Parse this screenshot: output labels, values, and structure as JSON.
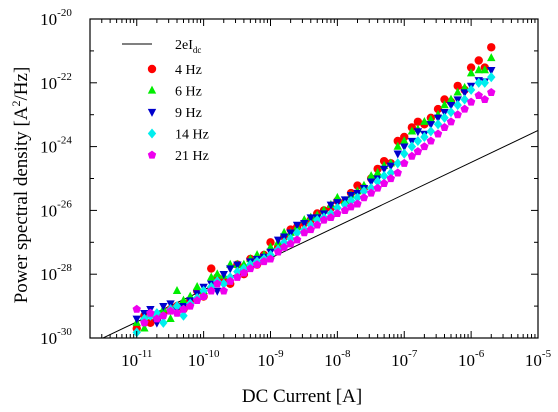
{
  "chart_data": {
    "type": "scatter",
    "title": "",
    "xlabel": "DC Current [A]",
    "ylabel_prefix": "Power spectral density [A",
    "ylabel_sup": "2",
    "ylabel_suffix": "/Hz]",
    "x_scale": "log",
    "y_scale": "log",
    "xlim": [
      2e-12,
      1e-05
    ],
    "ylim": [
      1e-30,
      1e-20
    ],
    "x_tick_exponents": [
      -11,
      -10,
      -9,
      -8,
      -7,
      -6,
      -5
    ],
    "y_tick_exponents": [
      -30,
      -28,
      -26,
      -24,
      -22,
      -20
    ],
    "grid": false,
    "legend_position": "top-left",
    "reference_line": {
      "label_main": "2eI",
      "label_sub": "dc",
      "color": "#000000",
      "points": [
        [
          2e-12,
          6.4e-31
        ],
        [
          1e-05,
          3.2e-24
        ]
      ]
    },
    "series": [
      {
        "name": "4 Hz",
        "color": "#ff0000",
        "marker": "circle",
        "x": [
          1e-11,
          1.3e-11,
          1.6e-11,
          2e-11,
          2.5e-11,
          3.2e-11,
          4e-11,
          5e-11,
          6.3e-11,
          8e-11,
          1e-10,
          1.3e-10,
          1.6e-10,
          2e-10,
          2.5e-10,
          3.2e-10,
          4e-10,
          5e-10,
          6.3e-10,
          8e-10,
          1e-09,
          1.3e-09,
          1.6e-09,
          2e-09,
          2.5e-09,
          3.2e-09,
          4e-09,
          5e-09,
          6.3e-09,
          8e-09,
          1e-08,
          1.3e-08,
          1.6e-08,
          2e-08,
          2.5e-08,
          3.2e-08,
          4e-08,
          5e-08,
          6.3e-08,
          8e-08,
          1e-07,
          1.3e-07,
          1.6e-07,
          2e-07,
          2.5e-07,
          3.2e-07,
          4e-07,
          5e-07,
          6.3e-07,
          8e-07,
          1e-06,
          1.3e-06,
          1.6e-06,
          2e-06
        ],
        "y": [
          2e-30,
          5e-30,
          3e-30,
          4e-30,
          6e-30,
          8e-30,
          1e-29,
          8e-30,
          1.5e-29,
          3e-29,
          2e-29,
          1.5e-28,
          8e-29,
          7e-29,
          5e-29,
          2e-28,
          1e-28,
          3e-28,
          2e-28,
          4e-28,
          1e-27,
          7e-28,
          1.5e-27,
          2.5e-27,
          3e-27,
          4e-27,
          5e-27,
          8e-27,
          1e-26,
          1.2e-26,
          2e-26,
          1.8e-26,
          3.5e-26,
          6e-26,
          5e-26,
          1e-25,
          2e-25,
          3.5e-25,
          3e-25,
          1.5e-24,
          2e-24,
          4e-24,
          6e-24,
          5e-24,
          8e-24,
          1.5e-23,
          3e-23,
          2.5e-23,
          8e-23,
          6e-23,
          3e-22,
          5e-22,
          3e-22,
          1.3e-21
        ]
      },
      {
        "name": "6 Hz",
        "color": "#00ee00",
        "marker": "triangle-up",
        "x": [
          1e-11,
          1.3e-11,
          1.6e-11,
          2e-11,
          2.5e-11,
          3.2e-11,
          4e-11,
          5e-11,
          6.3e-11,
          8e-11,
          1e-10,
          1.3e-10,
          1.6e-10,
          2e-10,
          2.5e-10,
          3.2e-10,
          4e-10,
          5e-10,
          6.3e-10,
          8e-10,
          1e-09,
          1.3e-09,
          1.6e-09,
          2e-09,
          2.5e-09,
          3.2e-09,
          4e-09,
          5e-09,
          6.3e-09,
          8e-09,
          1e-08,
          1.3e-08,
          1.6e-08,
          2e-08,
          2.5e-08,
          3.2e-08,
          4e-08,
          5e-08,
          6.3e-08,
          8e-08,
          1e-07,
          1.3e-07,
          1.6e-07,
          2e-07,
          2.5e-07,
          3.2e-07,
          4e-07,
          5e-07,
          6.3e-07,
          8e-07,
          1e-06,
          1.3e-06,
          1.6e-06,
          2e-06
        ],
        "y": [
          3e-30,
          2e-30,
          6e-30,
          5e-30,
          8e-30,
          4e-30,
          3e-29,
          1.5e-29,
          2e-29,
          4e-29,
          3e-29,
          8e-29,
          1e-28,
          9e-29,
          2e-28,
          2e-28,
          2e-28,
          3e-28,
          4e-28,
          4e-28,
          7e-28,
          1e-27,
          2e-27,
          2e-27,
          3e-27,
          5e-27,
          6e-27,
          7e-27,
          1e-26,
          1.5e-26,
          2.5e-26,
          2e-26,
          3e-26,
          4e-26,
          6e-26,
          1.2e-25,
          1.5e-25,
          2.5e-25,
          3e-25,
          1e-24,
          1.5e-24,
          3e-24,
          3.5e-24,
          6e-24,
          7e-24,
          1e-23,
          2e-23,
          3e-23,
          5e-23,
          7e-23,
          2e-22,
          2.5e-22,
          2.5e-22,
          6e-22
        ]
      },
      {
        "name": "9 Hz",
        "color": "#0000cc",
        "marker": "triangle-down",
        "x": [
          1e-11,
          1.3e-11,
          1.6e-11,
          2e-11,
          2.5e-11,
          3.2e-11,
          4e-11,
          5e-11,
          6.3e-11,
          8e-11,
          1e-10,
          1.3e-10,
          1.6e-10,
          2e-10,
          2.5e-10,
          3.2e-10,
          4e-10,
          5e-10,
          6.3e-10,
          8e-10,
          1e-09,
          1.3e-09,
          1.6e-09,
          2e-09,
          2.5e-09,
          3.2e-09,
          4e-09,
          5e-09,
          6.3e-09,
          8e-09,
          1e-08,
          1.3e-08,
          1.6e-08,
          2e-08,
          2.5e-08,
          3.2e-08,
          4e-08,
          5e-08,
          6.3e-08,
          8e-08,
          1e-07,
          1.3e-07,
          1.6e-07,
          2e-07,
          2.5e-07,
          3.2e-07,
          4e-07,
          5e-07,
          6.3e-07,
          8e-07,
          1e-06,
          1.3e-06,
          1.6e-06,
          2e-06
        ],
        "y": [
          4e-30,
          6e-30,
          8e-30,
          3e-30,
          1e-29,
          1.2e-29,
          8e-30,
          1e-29,
          1.5e-29,
          2.5e-29,
          4e-29,
          5e-29,
          3e-29,
          1e-28,
          1.5e-28,
          2e-28,
          1.2e-28,
          2.5e-28,
          3e-28,
          3.5e-28,
          5e-28,
          1.2e-27,
          1.5e-27,
          2e-27,
          3.5e-27,
          4e-27,
          6e-27,
          6e-27,
          8e-27,
          1.5e-26,
          1.8e-26,
          2.2e-26,
          3e-26,
          3.5e-26,
          5e-26,
          8e-26,
          1e-25,
          2e-25,
          2.5e-25,
          6e-25,
          1e-24,
          1.5e-24,
          3e-24,
          2.5e-24,
          5e-24,
          8e-24,
          1.2e-23,
          2e-23,
          3e-23,
          5e-23,
          8e-23,
          1.2e-22,
          1.1e-22,
          2.5e-22
        ]
      },
      {
        "name": "14 Hz",
        "color": "#00eeee",
        "marker": "diamond",
        "x": [
          1e-11,
          1.3e-11,
          1.6e-11,
          2e-11,
          2.5e-11,
          3.2e-11,
          4e-11,
          5e-11,
          6.3e-11,
          8e-11,
          1e-10,
          1.3e-10,
          1.6e-10,
          2e-10,
          2.5e-10,
          3.2e-10,
          4e-10,
          5e-10,
          6.3e-10,
          8e-10,
          1e-09,
          1.3e-09,
          1.6e-09,
          2e-09,
          2.5e-09,
          3.2e-09,
          4e-09,
          5e-09,
          6.3e-09,
          8e-09,
          1e-08,
          1.3e-08,
          1.6e-08,
          2e-08,
          2.5e-08,
          3.2e-08,
          4e-08,
          5e-08,
          6.3e-08,
          8e-08,
          1e-07,
          1.3e-07,
          1.6e-07,
          2e-07,
          2.5e-07,
          3.2e-07,
          4e-07,
          5e-07,
          6.3e-07,
          8e-07,
          1e-06,
          1.3e-06,
          1.6e-06,
          2e-06
        ],
        "y": [
          1.5e-30,
          4e-30,
          5e-30,
          6e-30,
          3e-30,
          8e-30,
          1e-29,
          5e-30,
          1.2e-29,
          1.8e-29,
          3e-29,
          4e-29,
          6e-29,
          5e-29,
          8e-29,
          1.2e-28,
          1.5e-28,
          2e-28,
          2.5e-28,
          3e-28,
          4e-28,
          6e-28,
          1e-27,
          1.3e-27,
          2e-27,
          2.5e-27,
          3.5e-27,
          5e-27,
          6e-27,
          8e-27,
          1.2e-26,
          1.5e-26,
          2e-26,
          2.5e-26,
          4e-26,
          5e-26,
          8e-26,
          1.2e-25,
          1.5e-25,
          3e-25,
          6e-25,
          1e-24,
          1.5e-24,
          2e-24,
          3e-24,
          5e-24,
          8e-24,
          1.2e-23,
          2e-23,
          3e-23,
          6e-23,
          1e-22,
          1e-22,
          1.5e-22
        ]
      },
      {
        "name": "21 Hz",
        "color": "#ee00ee",
        "marker": "pentagon",
        "x": [
          1e-11,
          1.3e-11,
          1.6e-11,
          2e-11,
          2.5e-11,
          3.2e-11,
          4e-11,
          5e-11,
          6.3e-11,
          8e-11,
          1e-10,
          1.3e-10,
          1.6e-10,
          2e-10,
          2.5e-10,
          3.2e-10,
          4e-10,
          5e-10,
          6.3e-10,
          8e-10,
          1e-09,
          1.3e-09,
          1.6e-09,
          2e-09,
          2.5e-09,
          3.2e-09,
          4e-09,
          5e-09,
          6.3e-09,
          8e-09,
          1e-08,
          1.3e-08,
          1.6e-08,
          2e-08,
          2.5e-08,
          3.2e-08,
          4e-08,
          5e-08,
          6.3e-08,
          8e-08,
          1e-07,
          1.3e-07,
          1.6e-07,
          2e-07,
          2.5e-07,
          3.2e-07,
          4e-07,
          5e-07,
          6.3e-07,
          8e-07,
          1e-06,
          1.3e-06,
          1.6e-06,
          2e-06
        ],
        "y": [
          8e-30,
          3e-30,
          6e-30,
          4e-30,
          5e-30,
          7e-30,
          6e-30,
          8e-30,
          1e-29,
          1.5e-29,
          2e-29,
          3e-29,
          5e-29,
          3e-29,
          6e-29,
          8e-29,
          1.1e-28,
          1.5e-28,
          2e-28,
          2.5e-28,
          3e-28,
          5e-28,
          7e-28,
          9e-28,
          1.2e-27,
          2e-27,
          2.5e-27,
          3.5e-27,
          5e-27,
          6e-27,
          8e-27,
          1e-26,
          1.3e-26,
          1.6e-26,
          2.5e-26,
          3.5e-26,
          5e-26,
          7e-26,
          1e-25,
          1.5e-25,
          3e-25,
          5e-25,
          7e-25,
          1e-24,
          1.5e-24,
          2.5e-24,
          4e-24,
          6e-24,
          1e-23,
          1.5e-23,
          2.5e-23,
          4e-23,
          3e-23,
          5e-23
        ]
      }
    ]
  }
}
